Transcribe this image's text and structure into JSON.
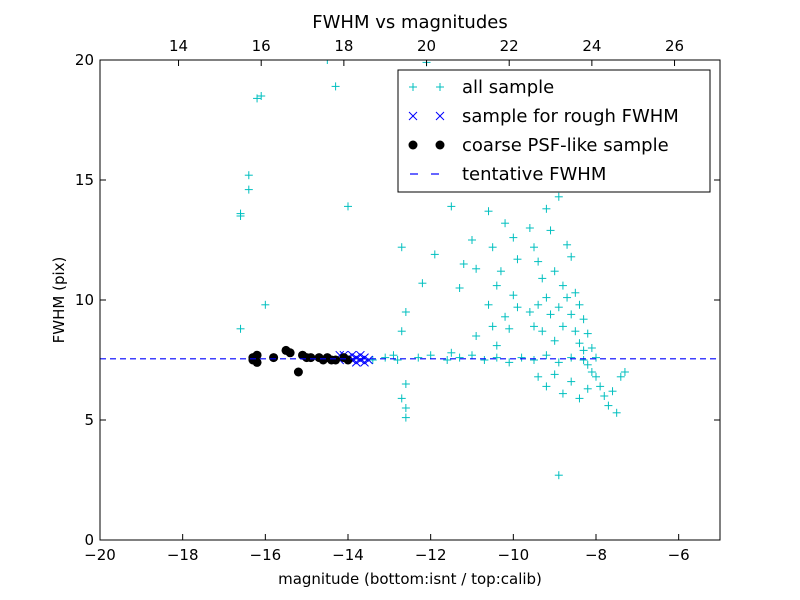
{
  "chart_data": {
    "type": "scatter",
    "title": "FWHM vs magnitudes",
    "xlabel": "magnitude (bottom:isnt / top:calib)",
    "ylabel": "FWHM (pix)",
    "xlim": [
      -20,
      -5
    ],
    "ylim": [
      0,
      20
    ],
    "top_xlim": [
      12.1,
      27.1
    ],
    "x_ticks": [
      -20,
      -18,
      -16,
      -14,
      -12,
      -10,
      -8,
      -6
    ],
    "x_tick_labels": [
      "−20",
      "−18",
      "−16",
      "−14",
      "−12",
      "−10",
      "−8",
      "−6"
    ],
    "y_ticks": [
      0,
      5,
      10,
      15,
      20
    ],
    "y_tick_labels": [
      "0",
      "5",
      "10",
      "15",
      "20"
    ],
    "top_ticks": [
      14,
      16,
      18,
      20,
      22,
      24,
      26
    ],
    "top_tick_labels": [
      "14",
      "16",
      "18",
      "20",
      "22",
      "24",
      "26"
    ],
    "grid": false,
    "legend_position": "top-right",
    "series": [
      {
        "name": "all sample",
        "marker": "plus",
        "color": "#00bfbf",
        "points": [
          [
            -16.2,
            18.4
          ],
          [
            -16.1,
            18.5
          ],
          [
            -16.4,
            15.2
          ],
          [
            -16.4,
            14.6
          ],
          [
            -16.6,
            13.6
          ],
          [
            -16.6,
            13.5
          ],
          [
            -16.0,
            9.8
          ],
          [
            -16.6,
            8.8
          ],
          [
            -14.3,
            18.9
          ],
          [
            -14.5,
            20.0
          ],
          [
            -14.0,
            13.9
          ],
          [
            -12.7,
            12.2
          ],
          [
            -12.6,
            9.5
          ],
          [
            -12.7,
            8.7
          ],
          [
            -12.6,
            6.5
          ],
          [
            -12.7,
            5.9
          ],
          [
            -12.6,
            5.5
          ],
          [
            -12.6,
            5.1
          ],
          [
            -12.2,
            10.7
          ],
          [
            -12.1,
            19.9
          ],
          [
            -11.9,
            11.9
          ],
          [
            -11.5,
            13.9
          ],
          [
            -11.3,
            10.5
          ],
          [
            -11.2,
            11.5
          ],
          [
            -11.5,
            7.8
          ],
          [
            -11.0,
            12.5
          ],
          [
            -10.9,
            11.3
          ],
          [
            -10.6,
            13.7
          ],
          [
            -10.5,
            12.2
          ],
          [
            -10.4,
            10.6
          ],
          [
            -10.3,
            11.2
          ],
          [
            -10.2,
            13.2
          ],
          [
            -10.0,
            12.6
          ],
          [
            -9.9,
            11.7
          ],
          [
            -10.9,
            8.5
          ],
          [
            -10.6,
            9.8
          ],
          [
            -10.5,
            8.9
          ],
          [
            -10.4,
            8.1
          ],
          [
            -10.2,
            9.3
          ],
          [
            -10.1,
            8.8
          ],
          [
            -10.0,
            10.2
          ],
          [
            -9.9,
            9.7
          ],
          [
            -9.6,
            13.0
          ],
          [
            -9.5,
            12.2
          ],
          [
            -9.4,
            11.6
          ],
          [
            -9.3,
            10.9
          ],
          [
            -9.2,
            13.8
          ],
          [
            -9.1,
            12.9
          ],
          [
            -9.0,
            11.2
          ],
          [
            -8.9,
            14.3
          ],
          [
            -8.8,
            10.6
          ],
          [
            -8.7,
            12.3
          ],
          [
            -8.6,
            11.8
          ],
          [
            -8.5,
            10.3
          ],
          [
            -8.4,
            9.8
          ],
          [
            -8.3,
            9.2
          ],
          [
            -8.2,
            8.6
          ],
          [
            -8.1,
            8.0
          ],
          [
            -8.0,
            7.6
          ],
          [
            -9.6,
            9.5
          ],
          [
            -9.5,
            8.9
          ],
          [
            -9.4,
            9.8
          ],
          [
            -9.3,
            8.7
          ],
          [
            -9.2,
            10.1
          ],
          [
            -9.1,
            9.4
          ],
          [
            -9.0,
            8.3
          ],
          [
            -8.9,
            9.7
          ],
          [
            -8.8,
            8.9
          ],
          [
            -8.7,
            10.1
          ],
          [
            -8.6,
            9.4
          ],
          [
            -8.5,
            8.7
          ],
          [
            -8.4,
            8.2
          ],
          [
            -8.3,
            7.9
          ],
          [
            -8.2,
            7.3
          ],
          [
            -8.1,
            7.0
          ],
          [
            -8.0,
            6.8
          ],
          [
            -7.9,
            6.4
          ],
          [
            -7.8,
            6.0
          ],
          [
            -7.7,
            5.6
          ],
          [
            -7.6,
            6.2
          ],
          [
            -7.5,
            5.3
          ],
          [
            -7.4,
            6.8
          ],
          [
            -7.3,
            7.0
          ],
          [
            -9.4,
            6.8
          ],
          [
            -9.2,
            6.4
          ],
          [
            -9.0,
            6.9
          ],
          [
            -8.8,
            6.1
          ],
          [
            -8.6,
            6.6
          ],
          [
            -8.4,
            5.9
          ],
          [
            -8.2,
            6.3
          ],
          [
            -8.9,
            2.7
          ],
          [
            -8.7,
            16.0
          ],
          [
            -8.6,
            15.4
          ],
          [
            -8.8,
            15.9
          ],
          [
            -12.3,
            7.6
          ],
          [
            -12.0,
            7.7
          ],
          [
            -11.6,
            7.5
          ],
          [
            -11.3,
            7.6
          ],
          [
            -11.0,
            7.7
          ],
          [
            -10.7,
            7.5
          ],
          [
            -10.4,
            7.6
          ],
          [
            -10.1,
            7.4
          ],
          [
            -9.8,
            7.6
          ],
          [
            -9.5,
            7.5
          ],
          [
            -9.2,
            7.7
          ],
          [
            -8.9,
            7.4
          ],
          [
            -8.6,
            7.6
          ],
          [
            -8.3,
            7.5
          ],
          [
            -13.4,
            7.5
          ],
          [
            -13.1,
            7.6
          ],
          [
            -12.9,
            7.7
          ],
          [
            -12.8,
            7.5
          ]
        ]
      },
      {
        "name": "sample for rough FWHM",
        "marker": "x",
        "color": "#0000ff",
        "points": [
          [
            -14.1,
            7.7
          ],
          [
            -14.0,
            7.6
          ],
          [
            -13.9,
            7.5
          ],
          [
            -13.9,
            7.7
          ],
          [
            -13.8,
            7.4
          ],
          [
            -13.8,
            7.6
          ],
          [
            -13.7,
            7.5
          ],
          [
            -13.7,
            7.7
          ],
          [
            -13.6,
            7.6
          ],
          [
            -13.6,
            7.4
          ],
          [
            -13.5,
            7.5
          ],
          [
            -14.2,
            7.5
          ],
          [
            -14.2,
            7.7
          ]
        ]
      },
      {
        "name": "coarse PSF-like sample",
        "marker": "circle",
        "color": "#000000",
        "points": [
          [
            -16.3,
            7.6
          ],
          [
            -16.3,
            7.5
          ],
          [
            -16.2,
            7.7
          ],
          [
            -16.2,
            7.4
          ],
          [
            -15.8,
            7.6
          ],
          [
            -15.5,
            7.9
          ],
          [
            -15.4,
            7.8
          ],
          [
            -15.2,
            7.0
          ],
          [
            -15.1,
            7.7
          ],
          [
            -15.0,
            7.6
          ],
          [
            -14.9,
            7.6
          ],
          [
            -14.7,
            7.6
          ],
          [
            -14.6,
            7.5
          ],
          [
            -14.5,
            7.6
          ],
          [
            -14.4,
            7.5
          ],
          [
            -14.3,
            7.5
          ],
          [
            -14.1,
            7.6
          ],
          [
            -14.0,
            7.5
          ]
        ]
      }
    ],
    "reference_line": {
      "name": "tentative FWHM",
      "y": 7.55,
      "style": "dashed",
      "color": "#0000ff"
    }
  }
}
